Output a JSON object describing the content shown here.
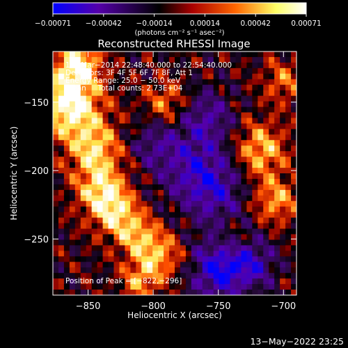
{
  "chart_data": {
    "type": "heatmap",
    "title": "Reconstructed RHESSI Image",
    "xlabel": "Heliocentric X (arcsec)",
    "ylabel": "Heliocentric Y (arcsec)",
    "xlim": [
      -877,
      -690
    ],
    "ylim": [
      -291,
      -113
    ],
    "x_ticks": [
      -850,
      -800,
      -750,
      -700
    ],
    "x_tick_labels": [
      "−850",
      "−800",
      "−750",
      "−700"
    ],
    "y_ticks": [
      -250,
      -200,
      -150
    ],
    "y_tick_labels": [
      "−250",
      "−200",
      "−150"
    ],
    "colorbar": {
      "range": [
        -0.00071,
        0.00071
      ],
      "ticks": [
        "−0.00071",
        "−0.00042",
        "−0.00014",
        "0.00014",
        "0.00042",
        "0.00071"
      ],
      "label": "(photons cm⁻² s⁻¹ asec⁻²)",
      "colors": [
        "#0000ff",
        "#5500aa",
        "#000000",
        "#aa0000",
        "#ff6600",
        "#ffff66",
        "#ffffff"
      ]
    },
    "annotations": [
      "18−Mar−2014 22:48:40.000 to 22:54:40.000",
      "Detectors: 3F 4F 5F 6F 7F 8F, Att 1",
      "Energy Range: 25.0 − 50.0 keV",
      "Clean     Total counts: 2.73E+04"
    ],
    "peak_label": "Position of Peak = [−822,−296]",
    "peak": [
      -822,
      -296
    ],
    "regions": [
      {
        "x": -864,
        "y": -152,
        "v": 1.0,
        "r": 17
      },
      {
        "x": -858,
        "y": -122,
        "v": 0.85,
        "r": 12
      },
      {
        "x": -845,
        "y": -185,
        "v": 0.7,
        "r": 14
      },
      {
        "x": -840,
        "y": -215,
        "v": 0.75,
        "r": 13
      },
      {
        "x": -828,
        "y": -232,
        "v": 0.65,
        "r": 12
      },
      {
        "x": -812,
        "y": -248,
        "v": 0.55,
        "r": 11
      },
      {
        "x": -795,
        "y": -262,
        "v": 0.6,
        "r": 12
      },
      {
        "x": -810,
        "y": -280,
        "v": 0.55,
        "r": 10
      },
      {
        "x": -790,
        "y": -150,
        "v": 0.5,
        "r": 11
      },
      {
        "x": -718,
        "y": -185,
        "v": 0.7,
        "r": 14
      },
      {
        "x": -706,
        "y": -222,
        "v": 0.6,
        "r": 12
      },
      {
        "x": -700,
        "y": -135,
        "v": 0.45,
        "r": 11
      },
      {
        "x": -740,
        "y": -250,
        "v": 0.45,
        "r": 10
      },
      {
        "x": -770,
        "y": -195,
        "v": -0.55,
        "r": 20
      },
      {
        "x": -752,
        "y": -215,
        "v": -0.5,
        "r": 16
      },
      {
        "x": -758,
        "y": -160,
        "v": -0.45,
        "r": 14
      },
      {
        "x": -742,
        "y": -260,
        "v": -0.6,
        "r": 16
      },
      {
        "x": -752,
        "y": -278,
        "v": -0.55,
        "r": 14
      },
      {
        "x": -722,
        "y": -270,
        "v": -0.45,
        "r": 12
      },
      {
        "x": -800,
        "y": -180,
        "v": -0.35,
        "r": 12
      }
    ]
  },
  "footer": {
    "timestamp": "13−May−2022 23:25"
  }
}
